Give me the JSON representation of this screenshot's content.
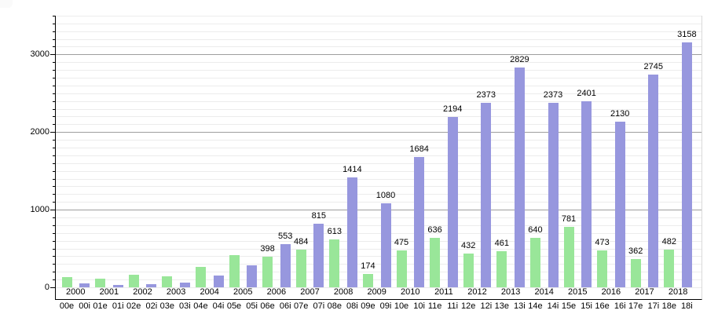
{
  "chart_data": {
    "type": "bar",
    "title": "",
    "categories": [
      "2000",
      "2001",
      "2002",
      "2003",
      "2004",
      "2005",
      "2006",
      "2007",
      "2008",
      "2009",
      "2010",
      "2011",
      "2012",
      "2013",
      "2014",
      "2015",
      "2016",
      "2017",
      "2018"
    ],
    "series": [
      {
        "name": "e",
        "color": "#99e699",
        "values": [
          130,
          115,
          160,
          145,
          265,
          415,
          398,
          484,
          613,
          174,
          475,
          636,
          432,
          461,
          640,
          781,
          473,
          362,
          482
        ],
        "data_labels": [
          "",
          "",
          "",
          "",
          "",
          "",
          "398",
          "484",
          "613",
          "174",
          "475",
          "636",
          "432",
          "461",
          "640",
          "781",
          "473",
          "362",
          "482"
        ]
      },
      {
        "name": "i",
        "color": "#9797de",
        "values": [
          50,
          35,
          45,
          60,
          155,
          280,
          553,
          815,
          1414,
          1080,
          1684,
          2194,
          2373,
          2829,
          2373,
          2401,
          2130,
          2745,
          3158
        ],
        "data_labels": [
          "",
          "",
          "",
          "",
          "",
          "",
          "553",
          "815",
          "1414",
          "1080",
          "1684",
          "2194",
          "2373",
          "2829",
          "2373",
          "2401",
          "2130",
          "2745",
          "3158"
        ]
      }
    ],
    "x_sub_labels": [
      "00e",
      "00i",
      "01e",
      "01i",
      "02e",
      "02i",
      "03e",
      "03i",
      "04e",
      "04i",
      "05e",
      "05i",
      "06e",
      "06i",
      "07e",
      "07i",
      "08e",
      "08i",
      "09e",
      "09i",
      "10e",
      "10i",
      "11e",
      "11i",
      "12e",
      "12i",
      "13e",
      "13i",
      "14e",
      "14i",
      "15e",
      "15i",
      "16e",
      "16i",
      "17e",
      "17i",
      "18e",
      "18i"
    ],
    "y_ticks": [
      "0",
      "1000",
      "2000",
      "3000"
    ],
    "y_tick_values": [
      0,
      1000,
      2000,
      3000
    ],
    "ylim": [
      -150,
      3500
    ],
    "grid": {
      "minor_step": 100,
      "major_step": 1000,
      "vertical": false
    },
    "legend": "none",
    "xlabel": "",
    "ylabel": ""
  },
  "colors": {
    "bar_e": "#99e699",
    "bar_i": "#9797de",
    "grid_minor": "#ececec",
    "grid_major": "#9e9e9e",
    "axis": "#000000",
    "background": "#ffffff",
    "text": "#000000"
  }
}
